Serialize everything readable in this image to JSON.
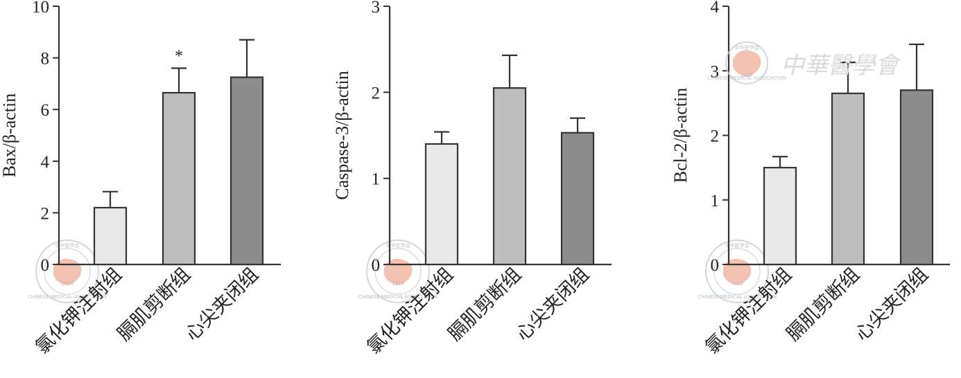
{
  "watermark": {
    "title_text": "中華醫學會",
    "seal_text": "CHINESE MEDICAL ASSOCIATION",
    "seal_chars": "中华医学会",
    "seal_year": "1915",
    "seal_color": "#f2b7a3",
    "ring_color": "#c8d0d6"
  },
  "chart_data": [
    {
      "type": "bar",
      "ylabel": "Bax/β-actin",
      "ylim": [
        0,
        10
      ],
      "yticks": [
        0,
        2,
        4,
        6,
        8,
        10
      ],
      "ytick_labels": [
        "0",
        "2",
        "4",
        "6",
        "8",
        "10"
      ],
      "categories": [
        "氯化钾注射组",
        "膈肌剪断组",
        "心尖夹闭组"
      ],
      "values": [
        2.2,
        6.65,
        7.25
      ],
      "errors": [
        0.62,
        0.95,
        1.45
      ],
      "significance": [
        "",
        "*",
        ""
      ],
      "bar_colors": [
        "#e8e8e8",
        "#bebebe",
        "#8c8c8c"
      ]
    },
    {
      "type": "bar",
      "ylabel": "Caspase-3/β-actin",
      "ylim": [
        0,
        3
      ],
      "yticks": [
        0,
        1,
        2,
        3
      ],
      "ytick_labels": [
        "0",
        "1",
        "2",
        "3"
      ],
      "categories": [
        "氯化钾注射组",
        "膈肌剪断组",
        "心尖夹闭组"
      ],
      "values": [
        1.4,
        2.05,
        1.53
      ],
      "errors": [
        0.14,
        0.38,
        0.17
      ],
      "significance": [
        "",
        "",
        ""
      ],
      "bar_colors": [
        "#e8e8e8",
        "#bebebe",
        "#8c8c8c"
      ]
    },
    {
      "type": "bar",
      "ylabel": "Bcl-2/β-actin",
      "ylim": [
        0,
        4
      ],
      "yticks": [
        0,
        1,
        2,
        3,
        4
      ],
      "ytick_labels": [
        "0",
        "1",
        "2",
        "3",
        "4"
      ],
      "categories": [
        "氯化钾注射组",
        "膈肌剪断组",
        "心尖夹闭组"
      ],
      "values": [
        1.5,
        2.65,
        2.7
      ],
      "errors": [
        0.17,
        0.48,
        0.71
      ],
      "significance": [
        "",
        "",
        ""
      ],
      "bar_colors": [
        "#e8e8e8",
        "#bebebe",
        "#8c8c8c"
      ]
    }
  ]
}
